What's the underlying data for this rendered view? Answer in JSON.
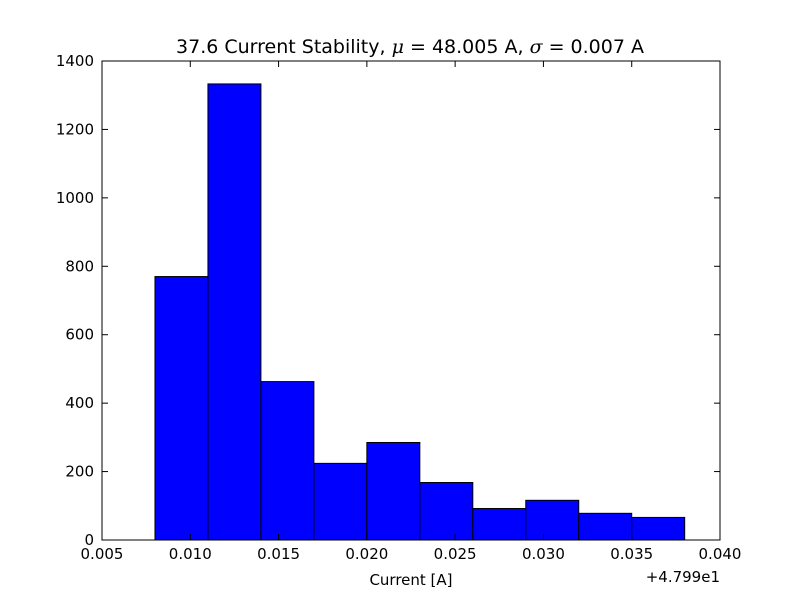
{
  "chart_data": {
    "type": "bar",
    "title_parts": [
      "37.6 Current Stability, ",
      "μ",
      " = 48.005 A, ",
      "σ",
      " = 0.007 A"
    ],
    "xlabel": "Current [A]",
    "ylabel": "",
    "x_offset_label": "+4.799e1",
    "xlim": [
      0.005,
      0.04
    ],
    "ylim": [
      0,
      1400
    ],
    "xticks": [
      "0.005",
      "0.010",
      "0.015",
      "0.020",
      "0.025",
      "0.030",
      "0.035",
      "0.040"
    ],
    "yticks": [
      "0",
      "200",
      "400",
      "600",
      "800",
      "1000",
      "1200",
      "1400"
    ],
    "grid": false,
    "bins": [
      {
        "x0": 0.008,
        "x1": 0.011,
        "count": 770
      },
      {
        "x0": 0.011,
        "x1": 0.014,
        "count": 1333
      },
      {
        "x0": 0.014,
        "x1": 0.017,
        "count": 463
      },
      {
        "x0": 0.017,
        "x1": 0.02,
        "count": 224
      },
      {
        "x0": 0.02,
        "x1": 0.023,
        "count": 285
      },
      {
        "x0": 0.023,
        "x1": 0.026,
        "count": 168
      },
      {
        "x0": 0.026,
        "x1": 0.029,
        "count": 92
      },
      {
        "x0": 0.029,
        "x1": 0.032,
        "count": 116
      },
      {
        "x0": 0.032,
        "x1": 0.035,
        "count": 78
      },
      {
        "x0": 0.035,
        "x1": 0.038,
        "count": 66
      }
    ],
    "bar_color": "#0000ff",
    "edge_color": "#000000"
  }
}
